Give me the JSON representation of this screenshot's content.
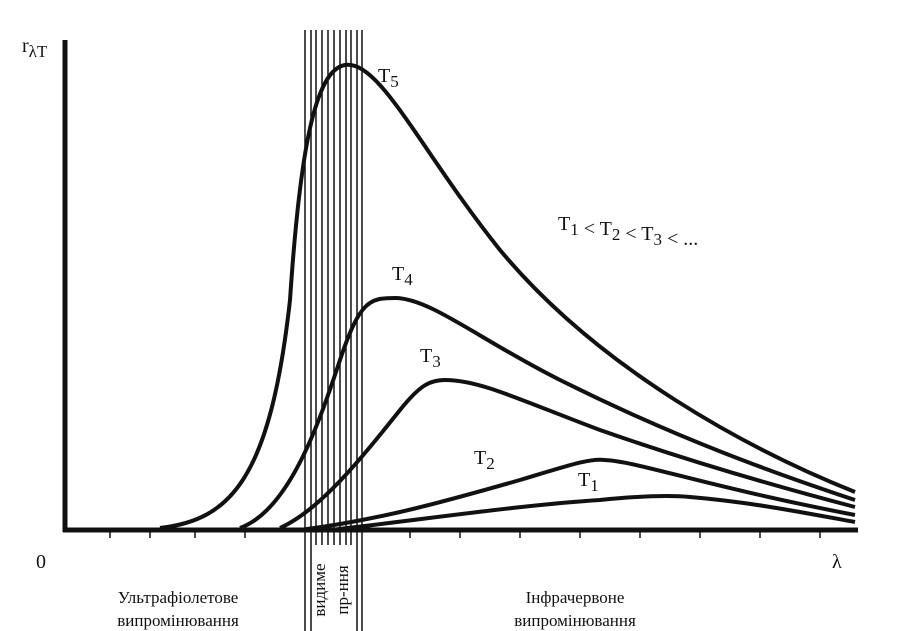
{
  "axes": {
    "y_label": {
      "symbol": "r",
      "sub": "λT"
    },
    "origin": "0",
    "x_label": "λ"
  },
  "curves": [
    {
      "label": {
        "symbol": "T",
        "sub": "5"
      }
    },
    {
      "label": {
        "symbol": "T",
        "sub": "4"
      }
    },
    {
      "label": {
        "symbol": "T",
        "sub": "3"
      }
    },
    {
      "label": {
        "symbol": "T",
        "sub": "2"
      }
    },
    {
      "label": {
        "symbol": "T",
        "sub": "1"
      }
    }
  ],
  "relation": [
    {
      "symbol": "T",
      "sub": "1"
    },
    {
      "symbol": " < "
    },
    {
      "symbol": "T",
      "sub": "2"
    },
    {
      "symbol": " < "
    },
    {
      "symbol": "T",
      "sub": "3"
    },
    {
      "symbol": " < ..."
    }
  ],
  "regions": {
    "ultraviolet": [
      "Ультрафіолетове",
      "випромінювання"
    ],
    "visible": [
      "видиме",
      "пр-ння"
    ],
    "infrared": [
      "Інфрачервоне",
      "випромінювання"
    ]
  }
}
